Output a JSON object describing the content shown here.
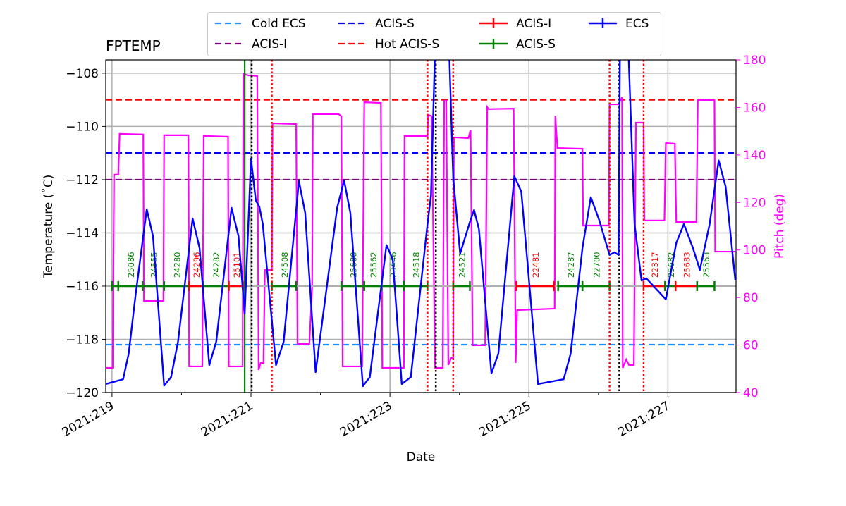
{
  "chart_data": {
    "type": "line",
    "title": "FPTEMP",
    "xlabel": "Date",
    "ylabel": "Temperature ($^\\circ$C)",
    "ylabel_display": "Temperature (˚C)",
    "y2label": "Pitch (deg)",
    "xlim": [
      218.91,
      227.98
    ],
    "ylim": [
      -120,
      -107.5
    ],
    "y2lim": [
      40,
      180
    ],
    "grid": true,
    "xticks": [
      219,
      221,
      223,
      225,
      227
    ],
    "xtick_labels": [
      "2021:219",
      "2021:221",
      "2021:223",
      "2021:225",
      "2021:227"
    ],
    "xminor_ticks": [
      220,
      222,
      224,
      226
    ],
    "yticks": [
      -120,
      -118,
      -116,
      -114,
      -112,
      -110,
      -108
    ],
    "ytick_labels": [
      "−120",
      "−118",
      "−116",
      "−114",
      "−112",
      "−110",
      "−108"
    ],
    "y2ticks": [
      40,
      60,
      80,
      100,
      120,
      140,
      160,
      180
    ],
    "y2tick_labels": [
      "40",
      "60",
      "80",
      "100",
      "120",
      "140",
      "160",
      "180"
    ],
    "legend": {
      "placement": "top-center, above plot",
      "entries": [
        {
          "label": "Cold ECS",
          "style": "dashed",
          "color": "#1e90ff"
        },
        {
          "label": "ACIS-I",
          "style": "dashed",
          "color": "#800080"
        },
        {
          "label": "ACIS-S",
          "style": "dashed",
          "color": "#0000ff"
        },
        {
          "label": "Hot ACIS-S",
          "style": "dashed",
          "color": "#ff0000"
        },
        {
          "label": "ACIS-I",
          "style": "errorbar",
          "color": "#ff0000"
        },
        {
          "label": "ACIS-S",
          "style": "errorbar",
          "color": "#008000"
        },
        {
          "label": "ECS",
          "style": "errorbar",
          "color": "#0000ff"
        }
      ]
    },
    "limit_lines": [
      {
        "name": "Cold ECS",
        "value": -118.2,
        "color": "#1e90ff"
      },
      {
        "name": "ACIS-I",
        "value": -112.0,
        "color": "#800080"
      },
      {
        "name": "ACIS-S",
        "value": -111.0,
        "color": "#0000ff"
      },
      {
        "name": "Hot ACIS-S",
        "value": -109.0,
        "color": "#ff0000"
      }
    ],
    "temperature": {
      "color": "#0000ff",
      "x": [
        218.91,
        219.16,
        219.24,
        219.34,
        219.5,
        219.59,
        219.75,
        219.85,
        219.95,
        220.16,
        220.26,
        220.4,
        220.5,
        220.72,
        220.82,
        220.91,
        221.0,
        221.07,
        221.12,
        221.17,
        221.36,
        221.47,
        221.69,
        221.78,
        221.93,
        222.24,
        222.34,
        222.43,
        222.61,
        222.71,
        222.95,
        223.04,
        223.17,
        223.3,
        223.54,
        223.59,
        223.65,
        223.85,
        223.91,
        224.01,
        224.15,
        224.21,
        224.28,
        224.46,
        224.56,
        224.79,
        224.89,
        225.13,
        225.5,
        225.6,
        225.77,
        225.89,
        226.01,
        226.16,
        226.23,
        226.29,
        226.31,
        226.43,
        226.52,
        226.62,
        226.69,
        226.97,
        227.12,
        227.23,
        227.36,
        227.46,
        227.6,
        227.73,
        227.83,
        227.97
      ],
      "y": [
        -119.68,
        -119.5,
        -118.54,
        -116.32,
        -113.11,
        -114.12,
        -119.74,
        -119.42,
        -118.09,
        -113.46,
        -114.57,
        -118.97,
        -118.09,
        -113.06,
        -114.12,
        -117.03,
        -111.21,
        -112.79,
        -113.01,
        -113.67,
        -118.97,
        -118.09,
        -112.05,
        -113.25,
        -119.23,
        -113.06,
        -112.03,
        -113.25,
        -119.76,
        -119.42,
        -114.46,
        -114.99,
        -119.68,
        -119.42,
        -113.67,
        -112.61,
        -107.0,
        -107.0,
        -111.92,
        -114.78,
        -113.59,
        -113.14,
        -113.85,
        -119.28,
        -118.54,
        -111.87,
        -112.45,
        -119.68,
        -119.5,
        -118.54,
        -114.57,
        -112.66,
        -113.51,
        -114.83,
        -114.73,
        -114.83,
        -107.0,
        -107.0,
        -113.67,
        -115.79,
        -115.71,
        -116.5,
        -114.38,
        -113.67,
        -114.57,
        -115.39,
        -113.67,
        -111.28,
        -112.26,
        -115.79
      ]
    },
    "pitch": {
      "color": "#ff00ff",
      "x": [
        218.91,
        219.01,
        219.03,
        219.09,
        219.11,
        219.45,
        219.46,
        219.74,
        219.75,
        220.1,
        220.11,
        220.3,
        220.32,
        220.67,
        220.68,
        220.88,
        220.89,
        220.96,
        221.09,
        221.11,
        221.14,
        221.18,
        221.2,
        221.3,
        221.31,
        221.65,
        221.67,
        221.84,
        221.88,
        221.89,
        222.26,
        222.3,
        222.32,
        222.6,
        222.63,
        222.87,
        222.89,
        223.2,
        223.21,
        223.54,
        223.55,
        223.6,
        223.65,
        223.76,
        223.78,
        223.81,
        223.84,
        223.88,
        223.91,
        223.92,
        224.13,
        224.16,
        224.19,
        224.37,
        224.4,
        224.42,
        224.78,
        224.81,
        224.83,
        225.37,
        225.38,
        225.41,
        225.77,
        225.78,
        226.15,
        226.16,
        226.29,
        226.34,
        226.35,
        226.4,
        226.44,
        226.51,
        226.54,
        226.65,
        226.66,
        226.95,
        226.97,
        227.1,
        227.12,
        227.41,
        227.43,
        227.67,
        227.68,
        227.97
      ],
      "y": [
        50.4,
        50.4,
        131.7,
        131.7,
        148.9,
        148.6,
        78.6,
        78.6,
        148.3,
        148.3,
        51,
        51,
        148,
        147.7,
        51,
        51,
        174.1,
        173.5,
        173.2,
        49.5,
        52.5,
        52.5,
        91.6,
        91.6,
        153.3,
        153,
        60.5,
        60.5,
        84.2,
        157.2,
        157.2,
        156.3,
        51,
        51,
        162.2,
        161.9,
        50.4,
        50.4,
        148,
        148,
        156.9,
        156.3,
        50.4,
        50.4,
        162.8,
        162.8,
        51.6,
        54.5,
        54.5,
        147.4,
        147.1,
        150.6,
        59.9,
        59.9,
        160.1,
        159.3,
        159.5,
        52.5,
        74.7,
        75.3,
        156.3,
        142.9,
        142.6,
        110.3,
        110.3,
        161.3,
        161.3,
        164.3,
        50.4,
        53.9,
        51.6,
        51.6,
        153.6,
        153.6,
        112.4,
        112.4,
        145,
        144.7,
        111.8,
        111.8,
        163.1,
        163.1,
        99.3,
        99.3
      ]
    },
    "obsids": [
      {
        "obsid": "",
        "start": 219.0,
        "stop": 219.09,
        "instrument": "ACIS-S"
      },
      {
        "obsid": "25086",
        "start": 219.09,
        "stop": 219.44,
        "instrument": "ACIS-S"
      },
      {
        "obsid": "24555",
        "start": 219.44,
        "stop": 219.75,
        "instrument": "ACIS-S"
      },
      {
        "obsid": "24280",
        "start": 219.75,
        "stop": 220.11,
        "instrument": "ACIS-S"
      },
      {
        "obsid": "24296",
        "start": 220.11,
        "stop": 220.31,
        "instrument": "ACIS-I"
      },
      {
        "obsid": "24282",
        "start": 220.31,
        "stop": 220.68,
        "instrument": "ACIS-S"
      },
      {
        "obsid": "25101",
        "start": 220.68,
        "stop": 220.89,
        "instrument": "ACIS-I"
      },
      {
        "obsid": "24508",
        "start": 221.3,
        "stop": 221.65,
        "instrument": "ACIS-S"
      },
      {
        "obsid": "25680",
        "start": 222.3,
        "stop": 222.63,
        "instrument": "ACIS-S"
      },
      {
        "obsid": "25562",
        "start": 222.63,
        "stop": 222.88,
        "instrument": "ACIS-S"
      },
      {
        "obsid": "23446",
        "start": 222.88,
        "stop": 223.2,
        "instrument": "ACIS-S"
      },
      {
        "obsid": "24518",
        "start": 223.2,
        "stop": 223.54,
        "instrument": "ACIS-S"
      },
      {
        "obsid": "24521",
        "start": 223.91,
        "stop": 224.15,
        "instrument": "ACIS-S"
      },
      {
        "obsid": "22481",
        "start": 224.82,
        "stop": 225.36,
        "instrument": "ACIS-I"
      },
      {
        "obsid": "24287",
        "start": 225.42,
        "stop": 225.77,
        "instrument": "ACIS-S"
      },
      {
        "obsid": "22700",
        "start": 225.77,
        "stop": 226.16,
        "instrument": "ACIS-S"
      },
      {
        "obsid": "22317",
        "start": 226.65,
        "stop": 226.96,
        "instrument": "ACIS-I"
      },
      {
        "obsid": "25682",
        "start": 226.96,
        "stop": 227.11,
        "instrument": "ACIS-S"
      },
      {
        "obsid": "25683",
        "start": 227.11,
        "stop": 227.42,
        "instrument": "ACIS-I"
      },
      {
        "obsid": "25563",
        "start": 227.42,
        "stop": 227.67,
        "instrument": "ACIS-S"
      }
    ],
    "obsid_level": -116.0,
    "vlines": [
      {
        "x": 220.91,
        "style": "solid",
        "color": "#008000"
      },
      {
        "x": 221.01,
        "style": "dotted",
        "color": "#000000"
      },
      {
        "x": 223.66,
        "style": "dotted",
        "color": "#000000"
      },
      {
        "x": 226.3,
        "style": "dotted",
        "color": "#000000"
      },
      {
        "x": 221.3,
        "style": "dotted",
        "color": "#ff0000"
      },
      {
        "x": 223.54,
        "style": "dotted",
        "color": "#ff0000"
      },
      {
        "x": 223.91,
        "style": "dotted",
        "color": "#ff0000"
      },
      {
        "x": 226.16,
        "style": "dotted",
        "color": "#ff0000"
      },
      {
        "x": 226.65,
        "style": "dotted",
        "color": "#ff0000"
      }
    ],
    "colors": {
      "ACIS-S": "#008000",
      "ACIS-I": "#ff0000",
      "pitch_axis": "#ff00ff"
    }
  }
}
